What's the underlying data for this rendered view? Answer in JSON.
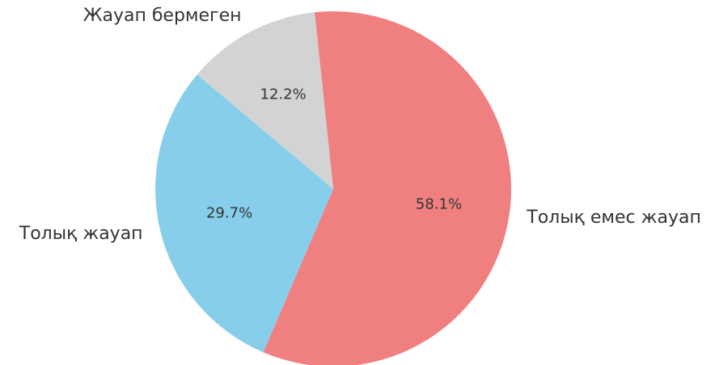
{
  "chart_data": {
    "type": "pie",
    "categories": [
      "Толық емес жауап",
      "Толық жауап",
      "Жауап бермеген"
    ],
    "values": [
      58.1,
      29.7,
      12.2
    ],
    "value_labels": [
      "58.1%",
      "29.7%",
      "12.2%"
    ],
    "colors": [
      "#f08080",
      "#87ceeb",
      "#d3d3d3"
    ]
  }
}
